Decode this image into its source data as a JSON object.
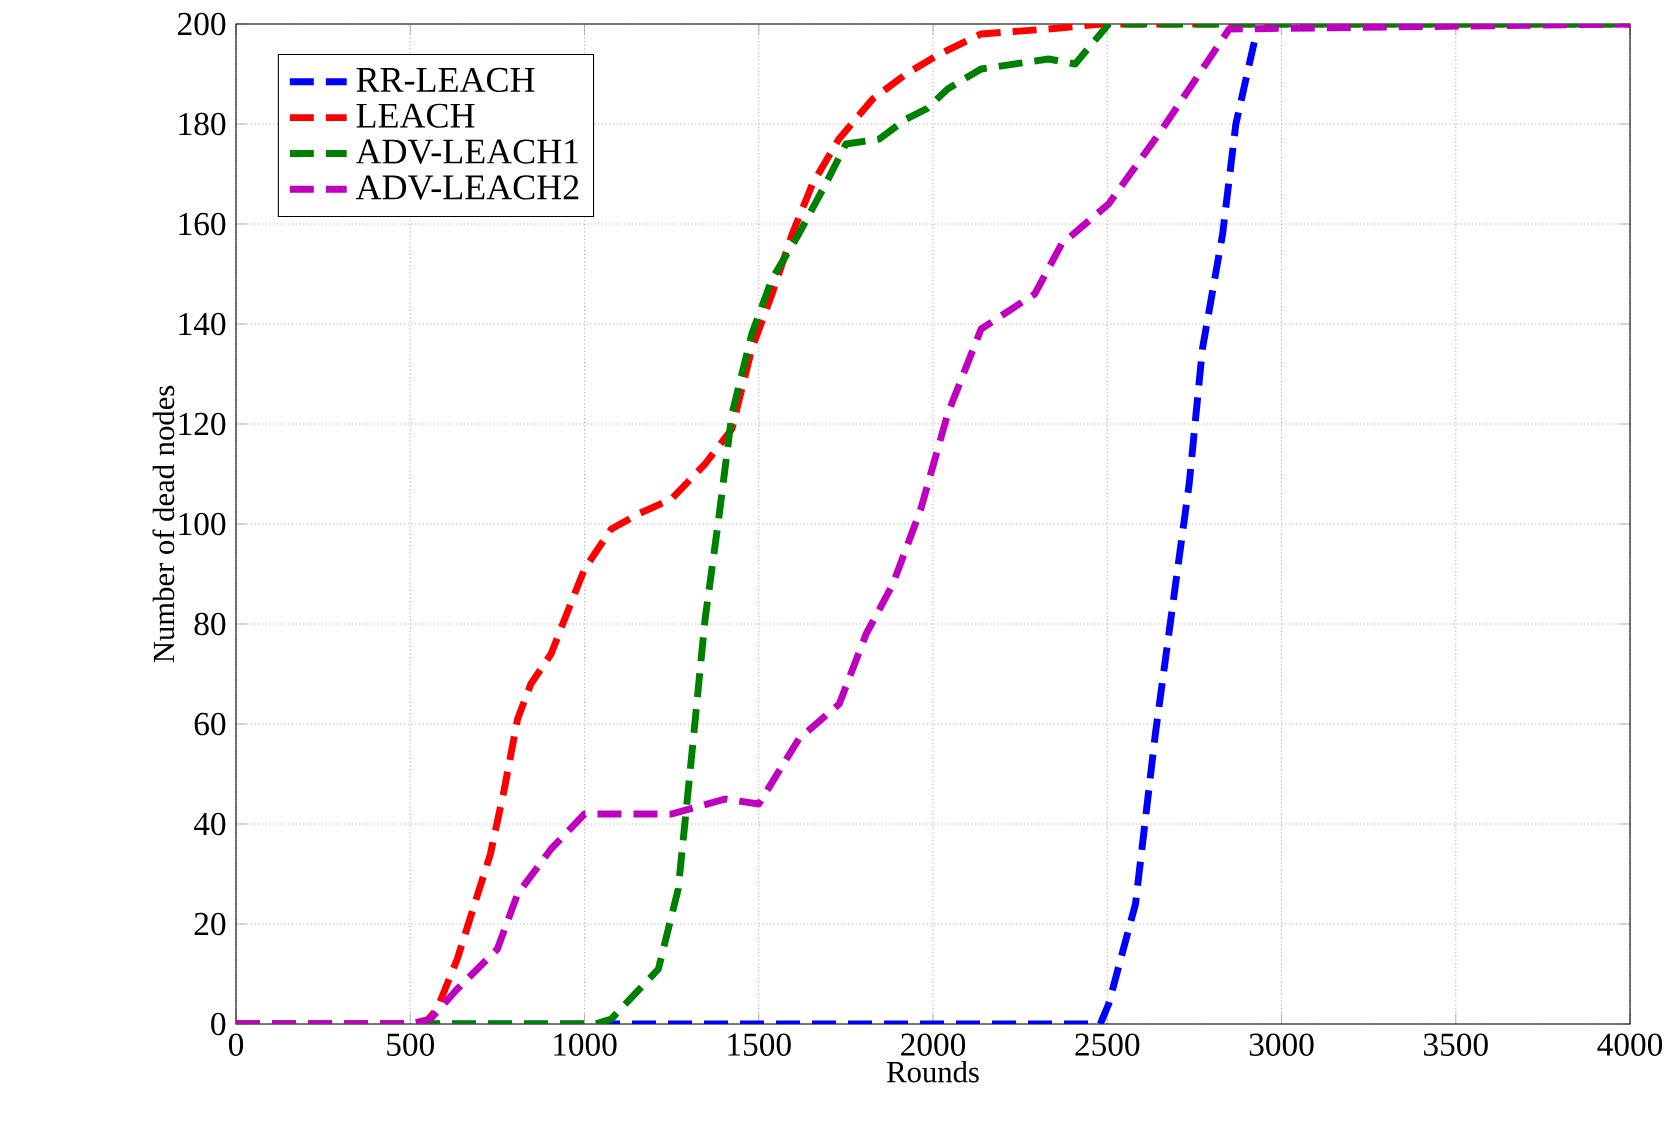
{
  "chart_data": {
    "type": "line",
    "xlabel": "Rounds",
    "ylabel": "Number of dead nodes",
    "xlim": [
      0,
      4000
    ],
    "ylim": [
      0,
      200
    ],
    "xticks": [
      0,
      500,
      1000,
      1500,
      2000,
      2500,
      3000,
      3500,
      4000
    ],
    "yticks": [
      0,
      20,
      40,
      60,
      80,
      100,
      120,
      140,
      160,
      180,
      200
    ],
    "grid": true,
    "legend": "top left",
    "line_style": "dashed",
    "marker": "none",
    "series": [
      {
        "name": "RR-LEACH",
        "color": "#0000ff",
        "x": [
          0,
          2480,
          2504,
          2581,
          2638,
          2696,
          2735,
          2773,
          2831,
          2869,
          2927
        ],
        "values": [
          0,
          0,
          4,
          24,
          58,
          88,
          108,
          135,
          158,
          180,
          198
        ]
      },
      {
        "name": "LEACH",
        "color": "#ff0000",
        "x": [
          0,
          540,
          577,
          635,
          730,
          770,
          808,
          846,
          904,
          960,
          1000,
          1077,
          1154,
          1250,
          1346,
          1423,
          1480,
          1538,
          1596,
          1654,
          1730,
          1827,
          1923,
          2019,
          2138,
          2331,
          2485,
          4000
        ],
        "values": [
          0,
          0,
          3,
          13,
          34,
          47,
          61,
          68,
          74,
          84,
          91,
          99,
          102,
          105,
          112,
          119,
          135,
          146,
          158,
          168,
          177,
          185,
          190,
          194,
          198,
          199,
          200,
          200
        ]
      },
      {
        "name": "ADV-LEACH1",
        "color": "#008000",
        "x": [
          0,
          1030,
          1077,
          1212,
          1269,
          1308,
          1346,
          1385,
          1423,
          1480,
          1538,
          1615,
          1692,
          1750,
          1846,
          1923,
          1981,
          2042,
          2138,
          2331,
          2408,
          2504,
          4000
        ],
        "values": [
          0,
          0,
          1,
          11,
          27,
          54,
          81,
          101,
          122,
          138,
          149,
          158,
          168,
          176,
          177,
          181,
          183,
          187,
          191,
          193,
          192,
          200,
          200
        ]
      },
      {
        "name": "ADV-LEACH2",
        "color": "#bf00bf",
        "x": [
          0,
          500,
          558,
          635,
          750,
          808,
          904,
          1000,
          1250,
          1404,
          1500,
          1615,
          1731,
          1808,
          1885,
          1965,
          2042,
          2138,
          2292,
          2369,
          2504,
          2658,
          2850,
          4000
        ],
        "values": [
          0,
          0,
          1,
          7,
          15,
          26,
          35,
          42,
          42,
          45,
          44,
          57,
          64,
          78,
          88,
          103,
          122,
          139,
          146,
          156,
          164,
          179,
          199,
          200
        ]
      }
    ]
  }
}
